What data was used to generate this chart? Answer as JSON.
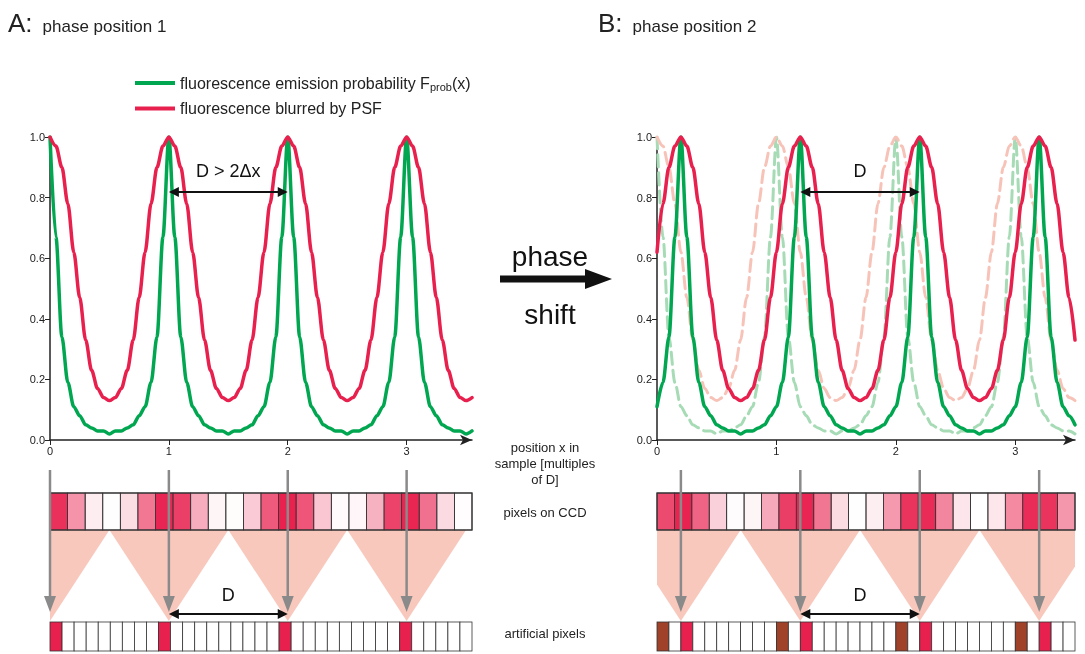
{
  "chart_data": [
    {
      "type": "line",
      "title": "A: phase position 1",
      "legend": "top",
      "xlim": [
        0,
        3.55
      ],
      "ylim": [
        0,
        1
      ],
      "xticks": [
        0,
        1,
        2,
        3
      ],
      "yticks": [
        {
          "value": 0,
          "label": "0.0"
        },
        {
          "value": 0.2,
          "label": "0.2"
        },
        {
          "value": 0.4,
          "label": "0.4"
        },
        {
          "value": 0.6,
          "label": "0.6"
        },
        {
          "value": 0.8,
          "label": "0.8"
        },
        {
          "value": 1,
          "label": "1.0"
        }
      ],
      "x": [
        0,
        0.05,
        0.1,
        0.15,
        0.2,
        0.25,
        0.3,
        0.35,
        0.4,
        0.45,
        0.5,
        0.55,
        0.6,
        0.65,
        0.7,
        0.75,
        0.8,
        0.85,
        0.9,
        0.95,
        1,
        1.05,
        1.1,
        1.15,
        1.2,
        1.25,
        1.3,
        1.35,
        1.4,
        1.45,
        1.5,
        1.55,
        1.6,
        1.65,
        1.7,
        1.75,
        1.8,
        1.85,
        1.9,
        1.95,
        2,
        2.05,
        2.1,
        2.15,
        2.2,
        2.25,
        2.3,
        2.35,
        2.4,
        2.45,
        2.5,
        2.55,
        2.6,
        2.65,
        2.7,
        2.75,
        2.8,
        2.85,
        2.9,
        2.95,
        3,
        3.05,
        3.1,
        3.15,
        3.2,
        3.25,
        3.3,
        3.35,
        3.4,
        3.45,
        3.5,
        3.55
      ],
      "series": [
        {
          "name": "fluorescence emission probability F$_{prob}$(x)",
          "color": "#00a650",
          "values": [
            1,
            0.67,
            0.34,
            0.19,
            0.11,
            0.08,
            0.05,
            0.04,
            0.03,
            0.03,
            0.02,
            0.03,
            0.03,
            0.04,
            0.05,
            0.08,
            0.11,
            0.19,
            0.34,
            0.67,
            1,
            0.67,
            0.34,
            0.19,
            0.11,
            0.08,
            0.05,
            0.04,
            0.03,
            0.03,
            0.02,
            0.03,
            0.03,
            0.04,
            0.05,
            0.08,
            0.11,
            0.19,
            0.34,
            0.67,
            1,
            0.67,
            0.34,
            0.19,
            0.11,
            0.08,
            0.05,
            0.04,
            0.03,
            0.03,
            0.02,
            0.03,
            0.03,
            0.04,
            0.05,
            0.08,
            0.11,
            0.19,
            0.34,
            0.67,
            1,
            0.67,
            0.34,
            0.19,
            0.11,
            0.08,
            0.05,
            0.04,
            0.03,
            0.03,
            0.02,
            0.03
          ]
        },
        {
          "name": "fluorescence blurred by PSF",
          "color": "#e8204e",
          "values": [
            1,
            0.97,
            0.9,
            0.78,
            0.62,
            0.47,
            0.33,
            0.23,
            0.17,
            0.14,
            0.13,
            0.14,
            0.17,
            0.23,
            0.33,
            0.47,
            0.62,
            0.78,
            0.9,
            0.97,
            1,
            0.97,
            0.9,
            0.78,
            0.62,
            0.47,
            0.33,
            0.23,
            0.17,
            0.14,
            0.13,
            0.14,
            0.17,
            0.23,
            0.33,
            0.47,
            0.62,
            0.78,
            0.9,
            0.97,
            1,
            0.97,
            0.9,
            0.78,
            0.62,
            0.47,
            0.33,
            0.23,
            0.17,
            0.14,
            0.13,
            0.14,
            0.17,
            0.23,
            0.33,
            0.47,
            0.62,
            0.78,
            0.9,
            0.97,
            1,
            0.97,
            0.9,
            0.78,
            0.62,
            0.47,
            0.33,
            0.23,
            0.17,
            0.14,
            0.13,
            0.14
          ]
        }
      ],
      "annotations": [
        "D > 2Δx",
        "position x in sample [multiples of D]",
        "pixels on CCD",
        "D",
        "artificial pixels",
        "phase shift"
      ]
    },
    {
      "type": "line",
      "title": "B: phase position 2",
      "xlim": [
        0,
        3.5
      ],
      "ylim": [
        0,
        1
      ],
      "xticks": [
        0,
        1,
        2,
        3
      ],
      "yticks": [
        {
          "value": 0,
          "label": "0.0"
        },
        {
          "value": 0.2,
          "label": "0.2"
        },
        {
          "value": 0.4,
          "label": "0.4"
        },
        {
          "value": 0.6,
          "label": "0.6"
        },
        {
          "value": 0.8,
          "label": "0.8"
        },
        {
          "value": 1,
          "label": "1.0"
        }
      ],
      "x": [
        0,
        0.05,
        0.1,
        0.15,
        0.2,
        0.25,
        0.3,
        0.35,
        0.4,
        0.45,
        0.5,
        0.55,
        0.6,
        0.65,
        0.7,
        0.75,
        0.8,
        0.85,
        0.9,
        0.95,
        1,
        1.05,
        1.1,
        1.15,
        1.2,
        1.25,
        1.3,
        1.35,
        1.4,
        1.45,
        1.5,
        1.55,
        1.6,
        1.65,
        1.7,
        1.75,
        1.8,
        1.85,
        1.9,
        1.95,
        2,
        2.05,
        2.1,
        2.15,
        2.2,
        2.25,
        2.3,
        2.35,
        2.4,
        2.45,
        2.5,
        2.55,
        2.6,
        2.65,
        2.7,
        2.75,
        2.8,
        2.85,
        2.9,
        2.95,
        3,
        3.05,
        3.1,
        3.15,
        3.2,
        3.25,
        3.3,
        3.35,
        3.4,
        3.45,
        3.5
      ],
      "series": [
        {
          "color": "#a6dbb6",
          "line_style": "dashed",
          "values": [
            1,
            0.67,
            0.34,
            0.19,
            0.11,
            0.08,
            0.05,
            0.04,
            0.03,
            0.03,
            0.02,
            0.03,
            0.03,
            0.04,
            0.05,
            0.08,
            0.11,
            0.19,
            0.34,
            0.67,
            1,
            0.67,
            0.34,
            0.19,
            0.11,
            0.08,
            0.05,
            0.04,
            0.03,
            0.03,
            0.02,
            0.03,
            0.03,
            0.04,
            0.05,
            0.08,
            0.11,
            0.19,
            0.34,
            0.67,
            1,
            0.67,
            0.34,
            0.19,
            0.11,
            0.08,
            0.05,
            0.04,
            0.03,
            0.03,
            0.02,
            0.03,
            0.03,
            0.04,
            0.05,
            0.08,
            0.11,
            0.19,
            0.34,
            0.67,
            1,
            0.67,
            0.34,
            0.19,
            0.11,
            0.08,
            0.05,
            0.04,
            0.03,
            0.03,
            0.02
          ]
        },
        {
          "color": "#f7c3b8",
          "line_style": "dashed",
          "values": [
            1,
            0.97,
            0.9,
            0.78,
            0.62,
            0.47,
            0.33,
            0.23,
            0.17,
            0.14,
            0.13,
            0.14,
            0.17,
            0.23,
            0.33,
            0.47,
            0.62,
            0.78,
            0.9,
            0.97,
            1,
            0.97,
            0.9,
            0.78,
            0.62,
            0.47,
            0.33,
            0.23,
            0.17,
            0.14,
            0.13,
            0.14,
            0.17,
            0.23,
            0.33,
            0.47,
            0.62,
            0.78,
            0.9,
            0.97,
            1,
            0.97,
            0.9,
            0.78,
            0.62,
            0.47,
            0.33,
            0.23,
            0.17,
            0.14,
            0.13,
            0.14,
            0.17,
            0.23,
            0.33,
            0.47,
            0.62,
            0.78,
            0.9,
            0.97,
            1,
            0.97,
            0.9,
            0.78,
            0.62,
            0.47,
            0.33,
            0.23,
            0.17,
            0.14,
            0.13
          ]
        },
        {
          "color": "#00a650",
          "values": [
            0.11,
            0.19,
            0.34,
            0.67,
            1,
            0.67,
            0.34,
            0.19,
            0.11,
            0.08,
            0.05,
            0.04,
            0.03,
            0.03,
            0.02,
            0.03,
            0.03,
            0.04,
            0.05,
            0.08,
            0.11,
            0.19,
            0.34,
            0.67,
            1,
            0.67,
            0.34,
            0.19,
            0.11,
            0.08,
            0.05,
            0.04,
            0.03,
            0.03,
            0.02,
            0.03,
            0.03,
            0.04,
            0.05,
            0.08,
            0.11,
            0.19,
            0.34,
            0.67,
            1,
            0.67,
            0.34,
            0.19,
            0.11,
            0.08,
            0.05,
            0.04,
            0.03,
            0.03,
            0.02,
            0.03,
            0.03,
            0.04,
            0.05,
            0.08,
            0.11,
            0.19,
            0.34,
            0.67,
            1,
            0.67,
            0.34,
            0.19,
            0.11,
            0.08,
            0.05
          ]
        },
        {
          "color": "#e8204e",
          "values": [
            0.62,
            0.78,
            0.9,
            0.97,
            1,
            0.97,
            0.9,
            0.78,
            0.62,
            0.47,
            0.33,
            0.23,
            0.17,
            0.14,
            0.13,
            0.14,
            0.17,
            0.23,
            0.33,
            0.47,
            0.62,
            0.78,
            0.9,
            0.97,
            1,
            0.97,
            0.9,
            0.78,
            0.62,
            0.47,
            0.33,
            0.23,
            0.17,
            0.14,
            0.13,
            0.14,
            0.17,
            0.23,
            0.33,
            0.47,
            0.62,
            0.78,
            0.9,
            0.97,
            1,
            0.97,
            0.9,
            0.78,
            0.62,
            0.47,
            0.33,
            0.23,
            0.17,
            0.14,
            0.13,
            0.14,
            0.17,
            0.23,
            0.33,
            0.47,
            0.62,
            0.78,
            0.9,
            0.97,
            1,
            0.97,
            0.9,
            0.78,
            0.62,
            0.47,
            0.33
          ]
        }
      ],
      "annotations": [
        "D",
        "D"
      ]
    }
  ]
}
